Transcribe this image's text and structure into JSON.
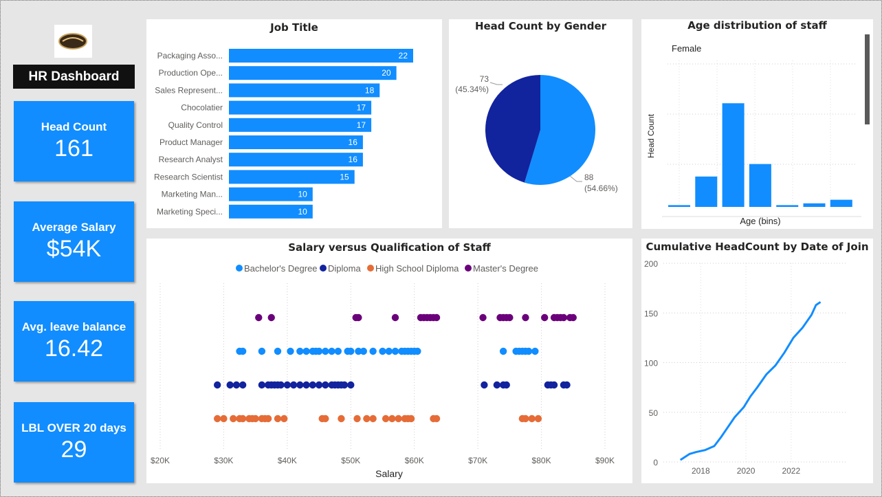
{
  "header": {
    "title": "HR Dashboard"
  },
  "kpis": [
    {
      "label": "Head Count",
      "value": "161"
    },
    {
      "label": "Average Salary",
      "value": "$54K"
    },
    {
      "label": "Avg. leave balance",
      "value": "16.42"
    },
    {
      "label": "LBL OVER 20 days",
      "value": "29"
    }
  ],
  "colors": {
    "accent": "#118dff",
    "navy": "#12239e",
    "orange": "#e66c37",
    "purple": "#6b007b",
    "bachelor": "#118dff"
  },
  "chart_data": [
    {
      "type": "bar",
      "orientation": "horizontal",
      "title": "Job Title",
      "categories": [
        "Packaging Asso...",
        "Production Ope...",
        "Sales Represent...",
        "Chocolatier",
        "Quality Control",
        "Product Manager",
        "Research Analyst",
        "Research Scientist",
        "Marketing Man...",
        "Marketing Speci..."
      ],
      "values": [
        22,
        20,
        18,
        17,
        17,
        16,
        16,
        15,
        10,
        10
      ],
      "value_labels": [
        "22",
        "20",
        "18",
        "17",
        "17",
        "16",
        "16",
        "15",
        "10",
        "10"
      ]
    },
    {
      "type": "pie",
      "title": "Head Count by Gender",
      "slices": [
        {
          "value": 73,
          "label": "73",
          "pct": "(45.34%)",
          "color": "#12239e"
        },
        {
          "value": 88,
          "label": "88",
          "pct": "(54.66%)",
          "color": "#118dff"
        }
      ]
    },
    {
      "type": "bar",
      "title": "Age distribution of staff",
      "filter_label": "Female",
      "xlabel": "Age (bins)",
      "ylabel": "Head Count",
      "values": [
        1,
        17,
        58,
        24,
        1,
        2,
        4
      ],
      "ylim": [
        0,
        80
      ]
    },
    {
      "type": "scatter",
      "title": "Salary versus Qualification of Staff",
      "xlabel": "Salary",
      "x_ticks": [
        "$20K",
        "$30K",
        "$40K",
        "$50K",
        "$60K",
        "$70K",
        "$80K",
        "$90K"
      ],
      "xlim": [
        20,
        90
      ],
      "series": [
        {
          "name": "Master's Degree",
          "color": "#6b007b",
          "x": [
            35.5,
            37.5,
            50.8,
            51.2,
            57,
            61,
            61.5,
            62,
            62.5,
            63,
            63.5,
            70.8,
            73.5,
            74,
            74.5,
            75,
            77.5,
            80.5,
            82,
            82.5,
            83,
            83.5,
            84.5,
            85
          ]
        },
        {
          "name": "Bachelor's Degree",
          "color": "#118dff",
          "x": [
            32.5,
            33,
            36,
            38.5,
            40.5,
            42,
            43,
            44,
            44.5,
            45,
            46,
            47,
            48,
            49.5,
            50,
            51.2,
            52,
            53.5,
            55,
            56,
            57,
            58,
            58.5,
            59,
            59.5,
            60,
            60.5,
            74,
            76,
            76.5,
            77,
            77.5,
            78,
            79
          ]
        },
        {
          "name": "Diploma",
          "color": "#12239e",
          "x": [
            29,
            31,
            32,
            33,
            36,
            37,
            37.5,
            38,
            38.5,
            39,
            40,
            41,
            42,
            43,
            44,
            45,
            46,
            47,
            47.5,
            48,
            48.5,
            49,
            50,
            71,
            73,
            74,
            74.5,
            81,
            81.5,
            82,
            83.5,
            84
          ]
        },
        {
          "name": "High School Diploma",
          "color": "#e66c37",
          "x": [
            29,
            30,
            31.5,
            32.5,
            33,
            34,
            34.5,
            35,
            36,
            36.5,
            37,
            38.5,
            39.5,
            45.5,
            46,
            48.5,
            51,
            52.5,
            53.5,
            55.5,
            56.5,
            57.5,
            58.5,
            59,
            59.5,
            63,
            63.5,
            77,
            77.5,
            78.5,
            79.5
          ]
        }
      ],
      "legend_order": [
        "Bachelor's Degree",
        "Diploma",
        "High School Diploma",
        "Master's Degree"
      ]
    },
    {
      "type": "line",
      "title": "Cumulative HeadCount by Date of Join",
      "x_ticks": [
        "2018",
        "2020",
        "2022"
      ],
      "y_ticks": [
        "0",
        "50",
        "100",
        "150",
        "200"
      ],
      "ylim": [
        0,
        200
      ],
      "xlim": [
        2016.5,
        2024.5
      ],
      "x": [
        2017.1,
        2017.5,
        2017.8,
        2018.2,
        2018.6,
        2018.9,
        2019.2,
        2019.5,
        2019.9,
        2020.2,
        2020.5,
        2020.9,
        2021.3,
        2021.7,
        2022.1,
        2022.5,
        2022.9,
        2023.1,
        2023.3
      ],
      "y": [
        2,
        8,
        10,
        12,
        16,
        25,
        35,
        45,
        55,
        66,
        75,
        88,
        97,
        110,
        125,
        135,
        148,
        158,
        161
      ]
    }
  ]
}
